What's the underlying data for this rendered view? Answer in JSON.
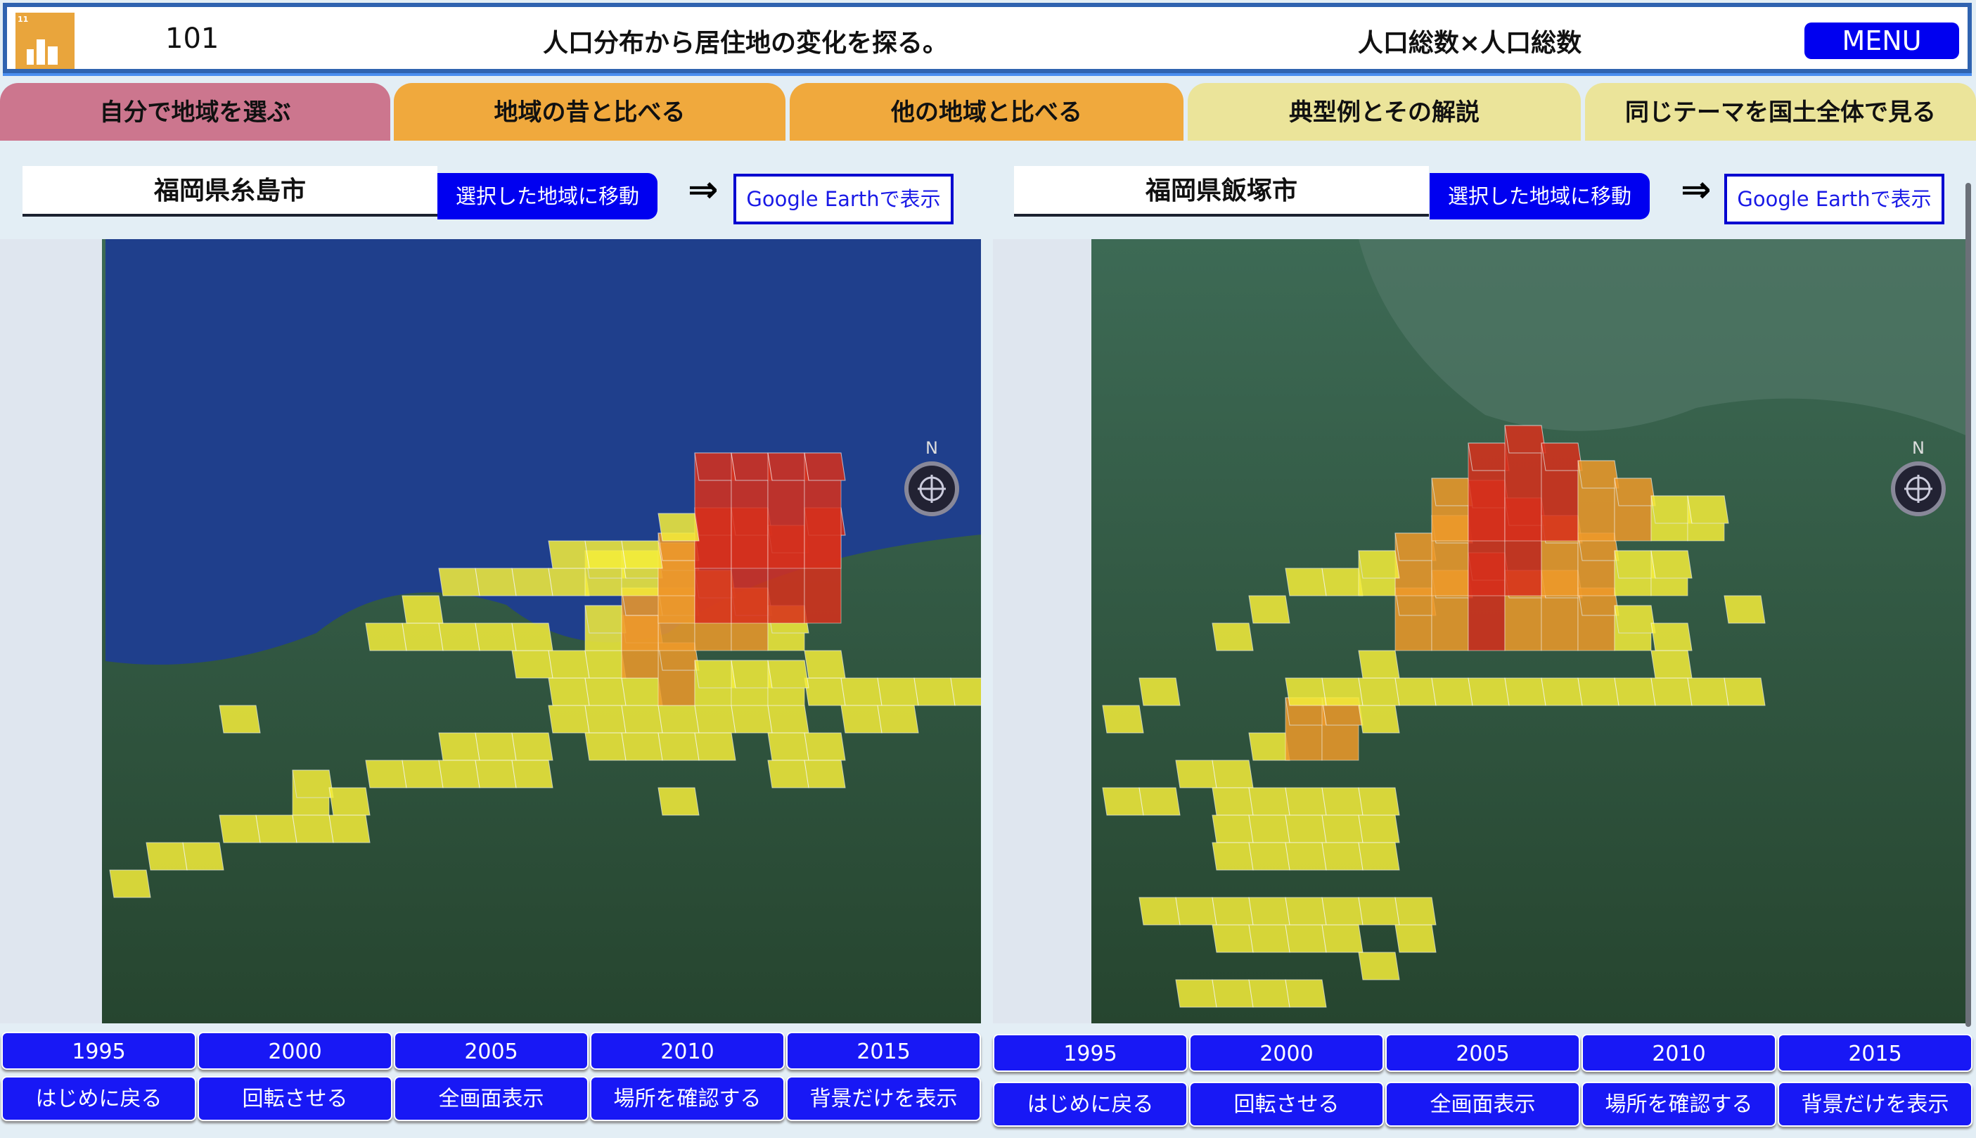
{
  "header": {
    "logo_icon": "sdg-11-sustainable-cities-icon",
    "logo_text": "11",
    "number": "101",
    "title": "人口分布から居住地の変化を探る。",
    "theme": "人口総数×人口総数",
    "menu_label": "MENU"
  },
  "tabs": [
    {
      "label": "自分で地域を選ぶ",
      "color": "#cc768e"
    },
    {
      "label": "地域の昔と比べる",
      "color": "#f0a93d"
    },
    {
      "label": "他の地域と比べる",
      "color": "#f0a93d"
    },
    {
      "label": "典型例とその解説",
      "color": "#ebe49a"
    },
    {
      "label": "同じテーマを国土全体で見る",
      "color": "#ebe49a"
    }
  ],
  "panels": [
    {
      "region": "福岡県糸島市",
      "move_label": "選択した地域に移動",
      "arrow": "⇒",
      "earth_label": "Google Earthで表示",
      "compass_label": "N",
      "years": [
        "1995",
        "2000",
        "2005",
        "2010",
        "2015"
      ],
      "actions": [
        "はじめに戻る",
        "回転させる",
        "全画面表示",
        "場所を確認する",
        "背景だけを表示"
      ]
    },
    {
      "region": "福岡県飯塚市",
      "move_label": "選択した地域に移動",
      "arrow": "⇒",
      "earth_label": "Google Earthで表示",
      "compass_label": "N",
      "years": [
        "1995",
        "2000",
        "2005",
        "2010",
        "2015"
      ],
      "actions": [
        "はじめに戻る",
        "回転させる",
        "全画面表示",
        "場所を確認する",
        "背景だけを表示"
      ]
    }
  ],
  "colors": {
    "button": "#1818f5",
    "low": "#f5ee3a",
    "mid": "#ef9a2a",
    "high": "#d8301c"
  }
}
